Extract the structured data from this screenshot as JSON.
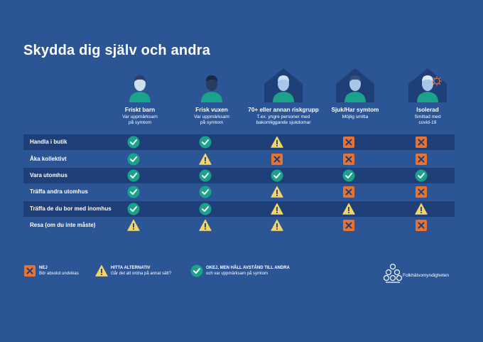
{
  "title": "Skydda dig själv och andra",
  "columns": [
    {
      "name": "Friskt barn",
      "sub1": "Var uppmärksam",
      "sub2": "på symtom"
    },
    {
      "name": "Frisk vuxen",
      "sub1": "Var uppmärksam",
      "sub2": "på symtom"
    },
    {
      "name": "70+ eller annan riskgrupp",
      "sub1": "T.ex. yngre personer med",
      "sub2": "bakomliggande sjukdomar"
    },
    {
      "name": "Sjuk/Har symtom",
      "sub1": "Möjlig smitta",
      "sub2": ""
    },
    {
      "name": "Isolerad",
      "sub1": "Smittad med",
      "sub2": "covid-19"
    }
  ],
  "rows": [
    {
      "label": "Handla i butik",
      "cells": [
        "ok",
        "ok",
        "warn",
        "no",
        "no"
      ]
    },
    {
      "label": "Åka kollektivt",
      "cells": [
        "ok",
        "warn",
        "no",
        "no",
        "no"
      ]
    },
    {
      "label": "Vara utomhus",
      "cells": [
        "ok",
        "ok",
        "ok",
        "ok",
        "ok"
      ]
    },
    {
      "label": "Träffa andra utomhus",
      "cells": [
        "ok",
        "ok",
        "warn",
        "no",
        "no"
      ]
    },
    {
      "label": "Träffa de du bor med inomhus",
      "cells": [
        "ok",
        "ok",
        "warn",
        "warn",
        "warn"
      ]
    },
    {
      "label": "Resa (om du inte måste)",
      "cells": [
        "warn",
        "warn",
        "warn",
        "no",
        "no"
      ]
    }
  ],
  "legend": [
    {
      "type": "no",
      "title": "NEJ",
      "text": "Bör absolut undvikas"
    },
    {
      "type": "warn",
      "title": "HITTA ALTERNATIV",
      "text": "Går det att ordna på annat sätt?"
    },
    {
      "type": "ok",
      "title": "OKEJ, MEN HÅLL AVSTÅND TILL ANDRA",
      "text": "och var uppmärksam på symtom"
    }
  ],
  "logo_text": "Folkhälsomyndigheten",
  "colors": {
    "background": "#2c5596",
    "row_dark": "#1e3f78",
    "ok": "#1aa28a",
    "warn": "#f3d46a",
    "no": "#e8722f"
  }
}
